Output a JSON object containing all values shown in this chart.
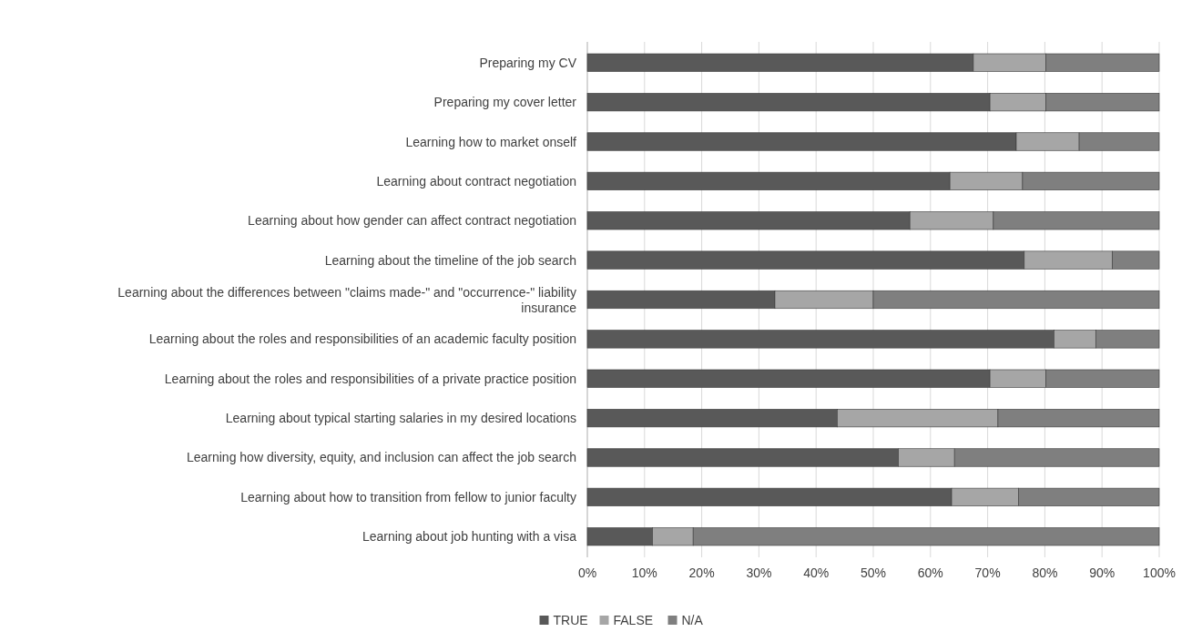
{
  "chart_data": {
    "type": "bar",
    "orientation": "horizontal",
    "stacked": true,
    "categories": [
      "Preparing my CV",
      "Preparing my cover letter",
      "Learning how to market onself",
      "Learning about contract negotiation",
      "Learning about how gender can affect contract negotiation",
      "Learning about the timeline of the job search",
      "Learning about the differences between \"claims made-\" and \"occurrence-\" liability insurance",
      "Learning about the roles and responsibilities of an academic faculty position",
      "Learning about the roles and responsibilities of a private practice position",
      "Learning about typical starting salaries in my desired locations",
      "Learning how diversity, equity, and inclusion can affect the job search",
      "Learning about how to transition from fellow to junior faculty",
      "Learning about job hunting with a visa"
    ],
    "series": [
      {
        "name": "TRUE",
        "color": "#595959",
        "values": [
          67.5,
          70.4,
          75,
          63.4,
          56.4,
          76.4,
          32.8,
          81.6,
          70.4,
          43.7,
          54.4,
          63.7,
          11.4
        ]
      },
      {
        "name": "FALSE",
        "color": "#a6a6a6",
        "values": [
          12.7,
          9.8,
          11,
          12.7,
          14.6,
          15.4,
          17.2,
          7.3,
          9.8,
          28.1,
          9.8,
          11.7,
          7.1
        ]
      },
      {
        "name": "N/A",
        "color": "#7f7f7f",
        "values": [
          19.8,
          19.8,
          14,
          23.9,
          29,
          8.2,
          50,
          11.1,
          19.8,
          28.2,
          35.8,
          24.6,
          81.5
        ]
      }
    ],
    "xlim": [
      0,
      100
    ],
    "xticks": [
      {
        "value": 0,
        "label": "0%"
      },
      {
        "value": 10,
        "label": "10%"
      },
      {
        "value": 20,
        "label": "20%"
      },
      {
        "value": 30,
        "label": "30%"
      },
      {
        "value": 40,
        "label": "40%"
      },
      {
        "value": 50,
        "label": "50%"
      },
      {
        "value": 60,
        "label": "60%"
      },
      {
        "value": 70,
        "label": "70%"
      },
      {
        "value": 80,
        "label": "80%"
      },
      {
        "value": 90,
        "label": "90%"
      },
      {
        "value": 100,
        "label": "100%"
      }
    ],
    "grid": "x",
    "legend": "bottom"
  }
}
